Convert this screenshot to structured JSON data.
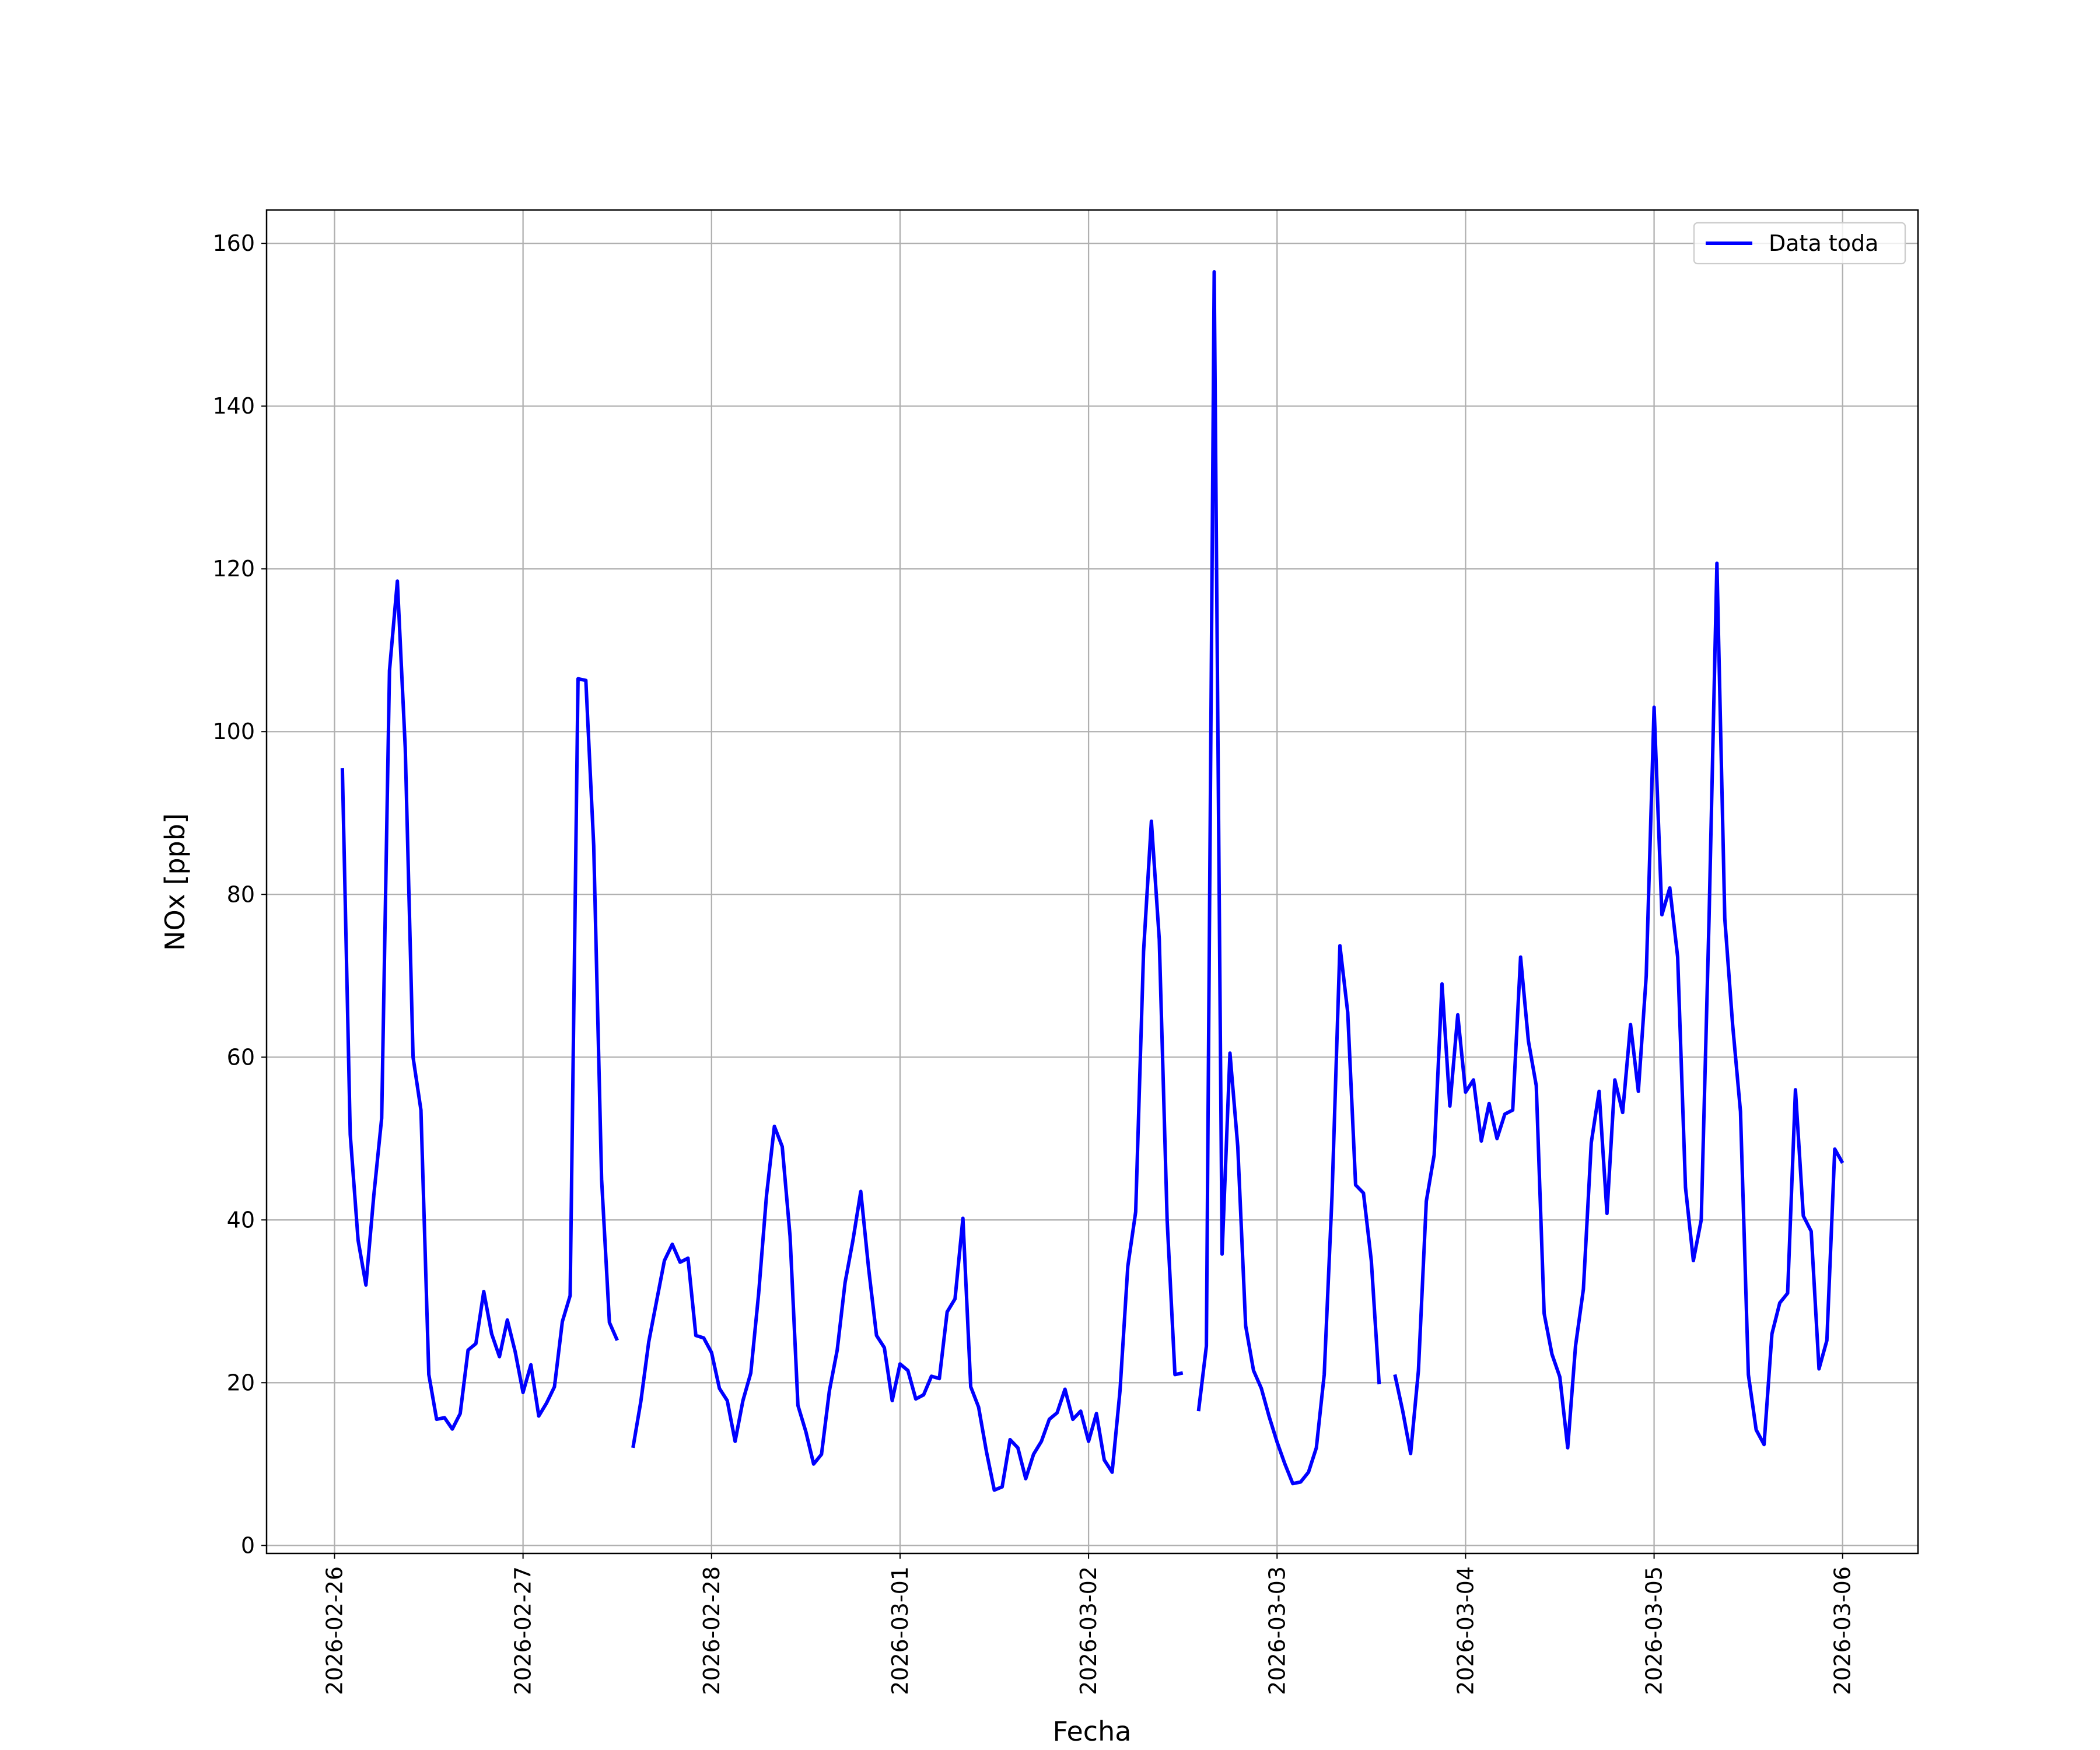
{
  "chart_data": {
    "type": "line",
    "xlabel": "Fecha",
    "ylabel": "NOx [ppb]",
    "x": [
      1,
      2,
      3,
      4,
      5,
      6,
      7,
      8,
      9,
      10,
      11,
      12,
      13,
      14,
      15,
      16,
      17,
      18,
      19,
      20,
      21,
      22,
      23,
      24,
      25,
      26,
      27,
      28,
      29,
      30,
      31,
      32,
      33,
      34,
      35,
      36,
      37,
      38,
      39,
      40,
      41,
      42,
      43,
      44,
      45,
      46,
      47,
      48,
      49,
      50,
      51,
      52,
      53,
      54,
      55,
      56,
      57,
      58,
      59,
      60,
      61,
      62,
      63,
      64,
      65,
      66,
      67,
      68,
      69,
      70,
      71,
      72,
      73,
      74,
      75,
      76,
      77,
      78,
      79,
      80,
      81,
      82,
      83,
      84,
      85,
      86,
      87,
      88,
      89,
      90,
      91,
      92,
      93,
      94,
      95,
      96,
      97,
      98,
      99,
      100,
      101,
      102,
      103,
      104,
      105,
      106,
      107,
      108,
      109,
      110,
      111,
      112,
      113,
      114,
      115,
      116,
      117,
      118,
      119,
      120,
      121,
      122,
      123,
      124,
      125,
      126,
      127,
      128,
      129,
      130,
      131,
      132,
      133,
      134,
      135,
      136,
      137,
      138,
      139,
      140,
      141,
      142,
      143,
      144,
      145,
      146,
      147,
      148,
      149,
      150,
      151,
      152,
      153,
      154,
      155,
      156,
      157,
      158,
      159,
      160,
      161,
      162,
      163,
      164,
      165,
      166,
      167,
      168,
      169,
      170,
      171,
      172,
      173,
      174,
      175,
      176,
      177,
      178,
      179,
      180,
      181,
      182,
      183,
      184,
      185,
      186,
      187,
      188,
      189,
      190,
      191,
      192
    ],
    "series": [
      {
        "name": "Data toda",
        "color": "#0000ff",
        "values": [
          95.5,
          50.5,
          37.5,
          32,
          43,
          52.5,
          107.5,
          118.5,
          98,
          60,
          53.5,
          21,
          15.5,
          15.7,
          14.3,
          16.2,
          24,
          24.8,
          31.2,
          26,
          23.2,
          27.7,
          23.8,
          18.8,
          22.2,
          15.9,
          17.5,
          19.5,
          27.5,
          30.7,
          106.5,
          106.3,
          86,
          45,
          27.4,
          25.2,
          null,
          12,
          17.7,
          25,
          30,
          35,
          37,
          34.8,
          35.3,
          25.8,
          25.5,
          23.7,
          19.3,
          17.8,
          12.8,
          17.8,
          21.2,
          31,
          43,
          51.5,
          49,
          38,
          17.2,
          14,
          10,
          11.2,
          19,
          24,
          32.3,
          37.5,
          43.5,
          34,
          25.8,
          24.3,
          17.8,
          22.3,
          21.5,
          18,
          18.5,
          20.8,
          20.5,
          28.7,
          30.3,
          40.2,
          19.5,
          17,
          11.5,
          6.8,
          7.2,
          13,
          12,
          8.2,
          11.2,
          12.8,
          15.5,
          16.3,
          19.2,
          15.5,
          16.5,
          12.8,
          16.2,
          10.5,
          9,
          19,
          34.3,
          41,
          73,
          89,
          74.5,
          40,
          21,
          21.2,
          null,
          16.5,
          24.5,
          156.5,
          35.8,
          60.5,
          49,
          27,
          21.5,
          19.3,
          15.8,
          12.7,
          10,
          7.6,
          7.8,
          9,
          12,
          21,
          43,
          73.7,
          65.5,
          44.3,
          43.3,
          35,
          19.8,
          null,
          21,
          16.5,
          11.3,
          21.5,
          42.3,
          48,
          69,
          54,
          65.2,
          55.7,
          57.2,
          49.7,
          54.3,
          50,
          53,
          53.5,
          72.3,
          62,
          56.5,
          28.5,
          23.5,
          20.7,
          12,
          24.5,
          31.5,
          49.5,
          55.8,
          40.8,
          57.2,
          53.2,
          64,
          55.8,
          70,
          103,
          77.5,
          80.8,
          72.3,
          44,
          35,
          40,
          77,
          120.7,
          77,
          64,
          53.3,
          21,
          14.2,
          12.4,
          26,
          29.8,
          31,
          56,
          40.5,
          38.6,
          21.7,
          25.2,
          48.7,
          47
        ]
      }
    ],
    "xlim": [
      -8.65,
      201.6
    ],
    "xticks": [
      {
        "value": 0,
        "label": "2026-02-26"
      },
      {
        "value": 24,
        "label": "2026-02-27"
      },
      {
        "value": 48,
        "label": "2026-02-28"
      },
      {
        "value": 72,
        "label": "2026-03-01"
      },
      {
        "value": 96,
        "label": "2026-03-02"
      },
      {
        "value": 120,
        "label": "2026-03-03"
      },
      {
        "value": 144,
        "label": "2026-03-04"
      },
      {
        "value": 168,
        "label": "2026-03-05"
      },
      {
        "value": 192,
        "label": "2026-03-06"
      }
    ],
    "ylim": [
      -0.98,
      164.1
    ],
    "yticks": [
      0,
      20,
      40,
      60,
      80,
      100,
      120,
      140,
      160
    ],
    "grid": true,
    "legend": "upper right"
  }
}
